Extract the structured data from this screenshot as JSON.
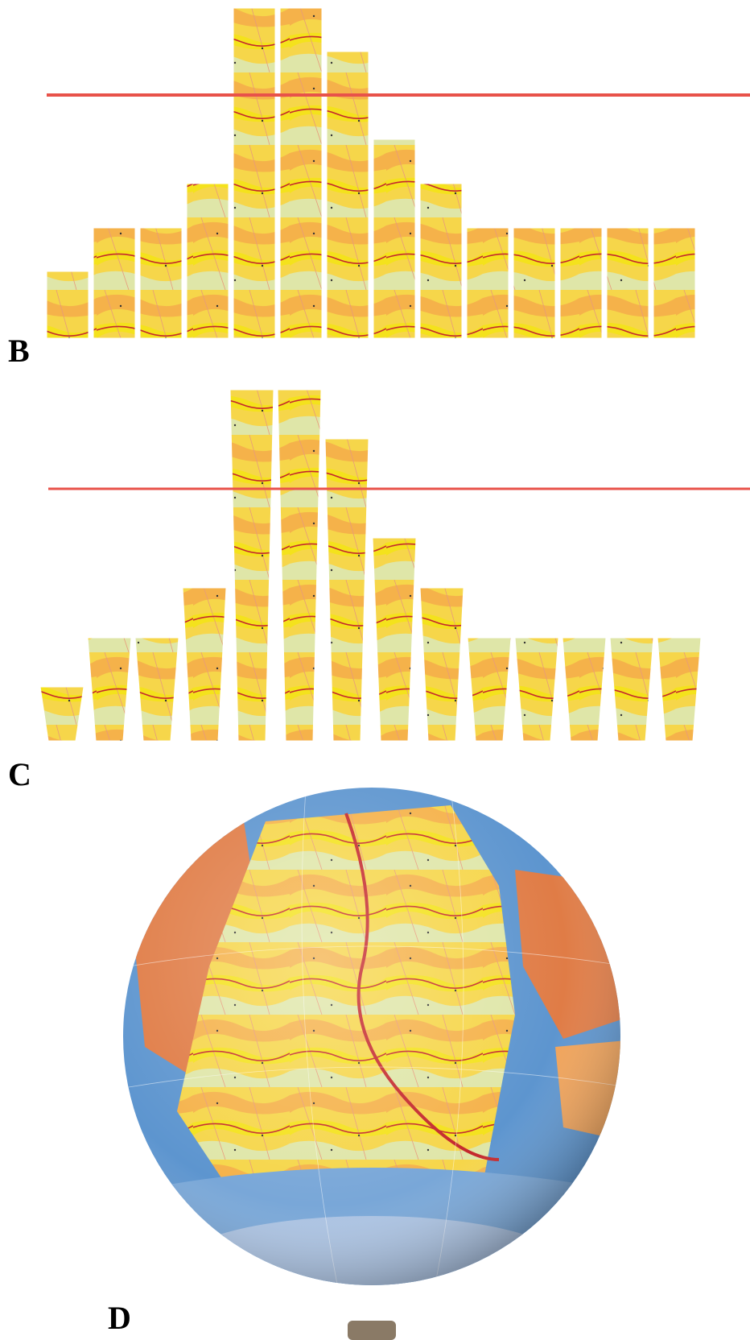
{
  "panels": {
    "b": {
      "label": "B",
      "strip_tops": [
        337,
        283,
        283,
        228,
        10,
        10,
        64,
        173,
        228,
        283,
        283,
        283,
        283,
        283
      ]
    },
    "c": {
      "label": "C",
      "strip_tops": [
        853,
        792,
        792,
        730,
        484,
        484,
        545,
        668,
        730,
        792,
        792,
        792,
        792,
        792
      ]
    },
    "d": {
      "label": "D"
    }
  },
  "colors": {
    "reference_line": "#e8524a",
    "map_yellow": "#f4e21c",
    "map_orange": "#f5b24a",
    "map_pale_green": "#dfe6a8",
    "map_dark_green": "#239447",
    "map_red_ridge": "#c4282c",
    "map_pink": "#f3a6b3",
    "globe_ocean": "#5d95cf",
    "globe_land": "#e07c46"
  }
}
